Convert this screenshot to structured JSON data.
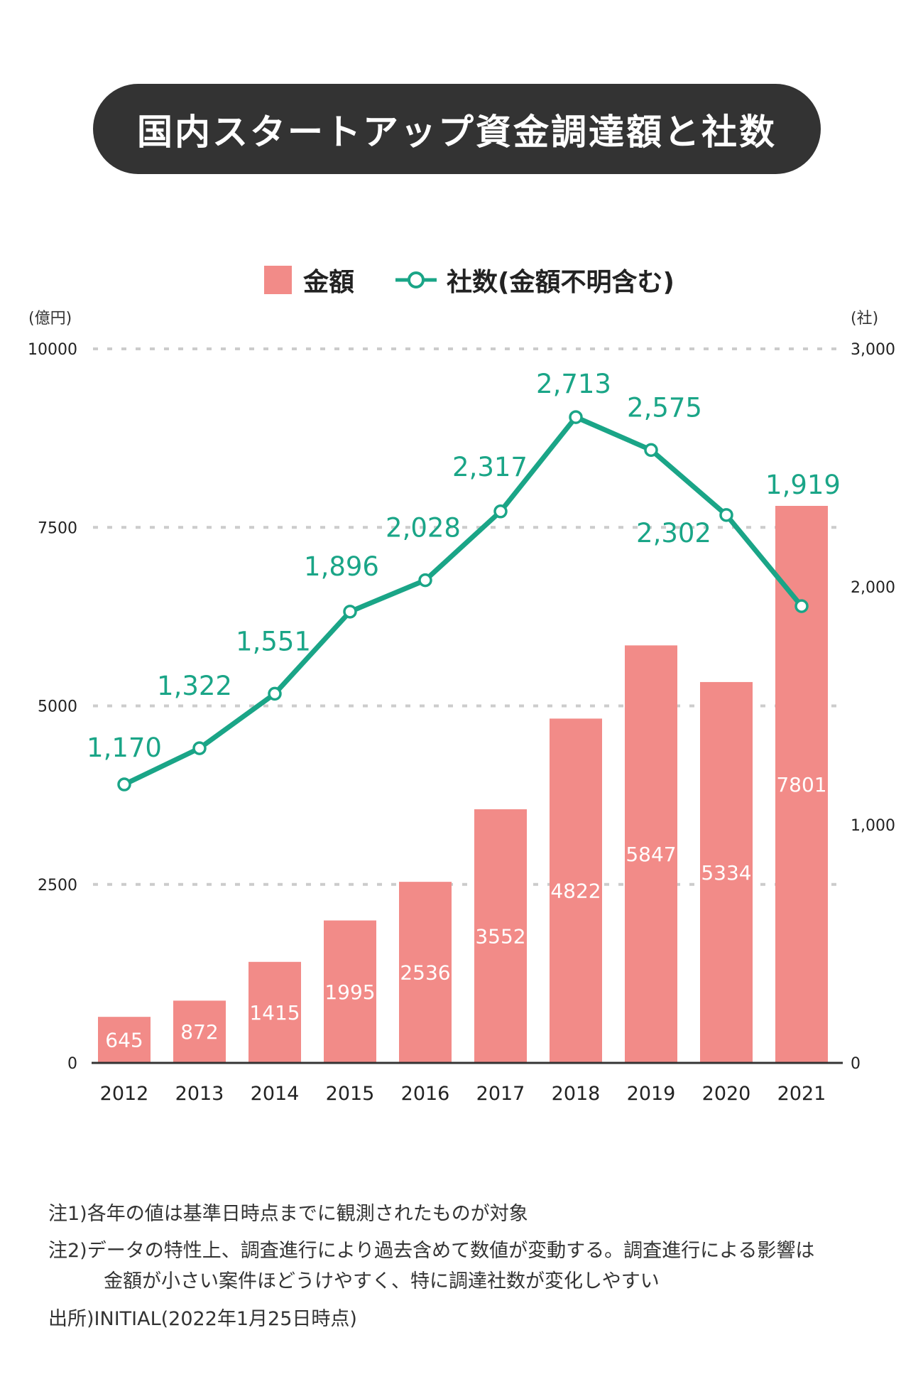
{
  "title": "国内スタートアップ資金調達額と社数",
  "legend": {
    "bar_label": "金額",
    "line_label": "社数(金額不明含む)"
  },
  "colors": {
    "bar": "#f28b88",
    "line": "#1aa587",
    "title_bg": "#333333",
    "grid": "#cccccc"
  },
  "chart_data": {
    "type": "bar+line",
    "categories": [
      "2012",
      "2013",
      "2014",
      "2015",
      "2016",
      "2017",
      "2018",
      "2019",
      "2020",
      "2021"
    ],
    "series": [
      {
        "name": "金額",
        "type": "bar",
        "axis": "left",
        "values": [
          645,
          872,
          1415,
          1995,
          2536,
          3552,
          4822,
          5847,
          5334,
          7801
        ]
      },
      {
        "name": "社数(金額不明含む)",
        "type": "line",
        "axis": "right",
        "values": [
          1170,
          1322,
          1551,
          1896,
          2028,
          2317,
          2713,
          2575,
          2302,
          1919
        ],
        "labels": [
          "1,170",
          "1,322",
          "1,551",
          "1,896",
          "2,028",
          "2,317",
          "2,713",
          "2,575",
          "2,302",
          "1,919"
        ]
      }
    ],
    "left_axis": {
      "unit": "(億円)",
      "ylim": [
        0,
        10000
      ],
      "ticks": [
        0,
        2500,
        5000,
        7500,
        10000
      ],
      "tick_labels": [
        "0",
        "2500",
        "5000",
        "7500",
        "10000"
      ]
    },
    "right_axis": {
      "unit": "(社)",
      "ylim": [
        0,
        3000
      ],
      "ticks": [
        0,
        1000,
        2000,
        3000
      ],
      "tick_labels": [
        "0",
        "1,000",
        "2,000",
        "3,000"
      ]
    },
    "grid": true,
    "legend_position": "top"
  },
  "notes": {
    "note1": "注1)各年の値は基準日時点までに観測されたものが対象",
    "note2_line1": "注2)データの特性上、調査進行により過去含めて数値が変動する。調査進行による影響は",
    "note2_line2": "金額が小さい案件ほどうけやすく、特に調達社数が変化しやすい",
    "source": "出所)INITIAL(2022年1月25日時点)"
  }
}
